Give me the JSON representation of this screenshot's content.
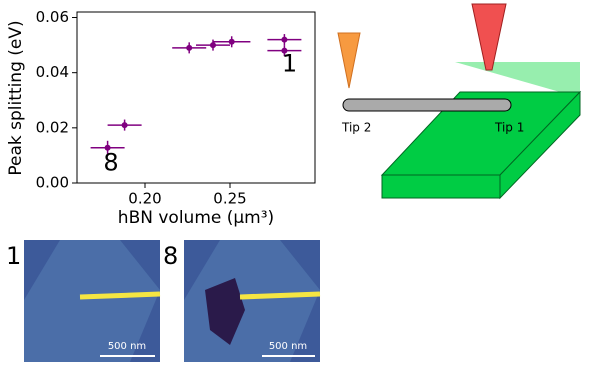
{
  "chart_data": {
    "type": "scatter",
    "color": "#800080",
    "x_label": "hBN volume (μm³)",
    "y_label": "Peak splitting (eV)",
    "xlim": [
      0.16,
      0.3
    ],
    "ylim": [
      0,
      0.062
    ],
    "xticks": [
      {
        "value": 0.2,
        "label": "0.20"
      },
      {
        "value": 0.25,
        "label": "0.25"
      }
    ],
    "yticks": [
      {
        "value": 0,
        "label": "0.00"
      },
      {
        "value": 0.02,
        "label": "0.02"
      },
      {
        "value": 0.04,
        "label": "0.04"
      },
      {
        "value": 0.06,
        "label": "0.06"
      }
    ],
    "x": [
      0.178,
      0.188,
      0.226,
      0.24,
      0.251,
      0.282,
      0.282
    ],
    "values": [
      0.0128,
      0.021,
      0.049,
      0.05,
      0.0512,
      0.052,
      0.048
    ],
    "xerr": [
      0.01,
      0.01,
      0.01,
      0.01,
      0.011,
      0.01,
      0.01
    ],
    "yerr": [
      0.0025,
      0.002,
      0.002,
      0.002,
      0.002,
      0.002,
      0.002
    ],
    "annotations": [
      {
        "text": "8",
        "x": 0.18,
        "y": 0.007
      },
      {
        "text": "1",
        "x": 0.285,
        "y": 0.043
      }
    ]
  },
  "diagram": {
    "tip_left": "Tip 2",
    "tip_right": "Tip 1"
  },
  "images": [
    {
      "label": "1",
      "scale_bar": "500 nm"
    },
    {
      "label": "8",
      "scale_bar": "500 nm"
    }
  ]
}
